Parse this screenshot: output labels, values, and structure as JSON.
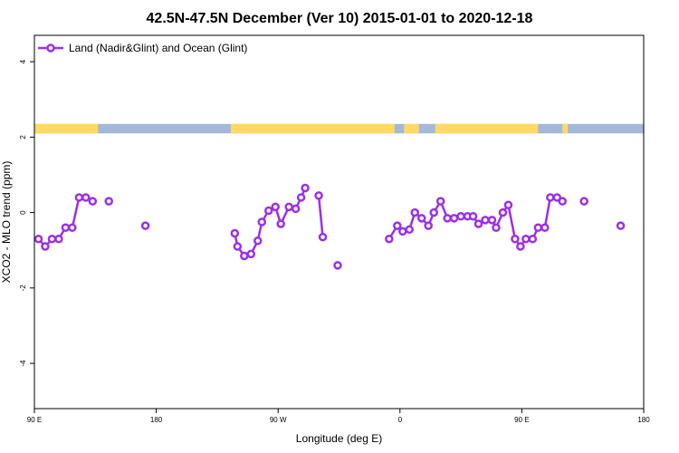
{
  "chart_data": {
    "type": "line",
    "title": "42.5N-47.5N December (Ver 10)   2015-01-01 to 2020-12-18",
    "xlabel": "Longitude (deg E)",
    "ylabel": "XCO2 - MLO trend (ppm)",
    "xlim": [
      90,
      540
    ],
    "ylim": [
      -5.2,
      4.7
    ],
    "x_ticks": [
      {
        "value": 90,
        "label": "90 E"
      },
      {
        "value": 180,
        "label": "180"
      },
      {
        "value": 270,
        "label": "90 W"
      },
      {
        "value": 360,
        "label": "0"
      },
      {
        "value": 450,
        "label": "90 E"
      },
      {
        "value": 540,
        "label": "180"
      }
    ],
    "y_ticks": [
      {
        "value": 4,
        "label": "4"
      },
      {
        "value": 2,
        "label": "2"
      },
      {
        "value": 0,
        "label": "0"
      },
      {
        "value": -2,
        "label": "-2"
      },
      {
        "value": -4,
        "label": "-4"
      }
    ],
    "legend": {
      "position": "top-left",
      "entries": [
        "Land (Nadir&Glint) and Ocean (Glint)"
      ]
    },
    "grid": false,
    "series": [
      {
        "name": "Land (Nadir&Glint) and Ocean (Glint)",
        "color": "#9b30e8",
        "segments": [
          [
            [
              93,
              -0.7
            ],
            [
              98,
              -0.9
            ],
            [
              103,
              -0.7
            ],
            [
              108,
              -0.7
            ],
            [
              113,
              -0.4
            ],
            [
              118,
              -0.4
            ],
            [
              123,
              0.4
            ],
            [
              128,
              0.4
            ],
            [
              133,
              0.3
            ]
          ],
          [
            [
              145,
              0.3
            ]
          ],
          [
            [
              172,
              -0.35
            ]
          ],
          [
            [
              238,
              -0.55
            ],
            [
              240,
              -0.9
            ],
            [
              245,
              -1.15
            ],
            [
              250,
              -1.1
            ],
            [
              255,
              -0.75
            ],
            [
              258,
              -0.25
            ],
            [
              263,
              0.05
            ],
            [
              268,
              0.15
            ],
            [
              272,
              -0.3
            ],
            [
              278,
              0.15
            ],
            [
              283,
              0.1
            ],
            [
              287,
              0.4
            ],
            [
              290,
              0.65
            ]
          ],
          [
            [
              300,
              0.45
            ],
            [
              303,
              -0.65
            ]
          ],
          [
            [
              314,
              -1.4
            ]
          ],
          [
            [
              352,
              -0.7
            ],
            [
              358,
              -0.35
            ],
            [
              362,
              -0.5
            ],
            [
              367,
              -0.45
            ],
            [
              371,
              0.0
            ],
            [
              376,
              -0.15
            ],
            [
              381,
              -0.35
            ],
            [
              385,
              0.0
            ],
            [
              390,
              0.3
            ],
            [
              395,
              -0.15
            ],
            [
              400,
              -0.15
            ],
            [
              405,
              -0.1
            ],
            [
              410,
              -0.1
            ],
            [
              414,
              -0.1
            ],
            [
              418,
              -0.3
            ],
            [
              423,
              -0.2
            ],
            [
              428,
              -0.2
            ],
            [
              431,
              -0.4
            ],
            [
              436,
              0.0
            ],
            [
              440,
              0.2
            ],
            [
              445,
              -0.7
            ],
            [
              449,
              -0.9
            ],
            [
              453,
              -0.7
            ],
            [
              458,
              -0.7
            ],
            [
              462,
              -0.4
            ],
            [
              467,
              -0.4
            ],
            [
              471,
              0.4
            ],
            [
              476,
              0.4
            ],
            [
              480,
              0.3
            ]
          ],
          [
            [
              496,
              0.3
            ]
          ],
          [
            [
              523,
              -0.35
            ]
          ]
        ]
      }
    ],
    "land_ocean_band": {
      "y_range": [
        2.1,
        2.35
      ],
      "land_color": "#ffd966",
      "ocean_color": "#a4b8d8",
      "land_intervals": [
        [
          90,
          137
        ],
        [
          235,
          356
        ],
        [
          363,
          374
        ],
        [
          386,
          462
        ],
        [
          480,
          484
        ]
      ]
    }
  }
}
